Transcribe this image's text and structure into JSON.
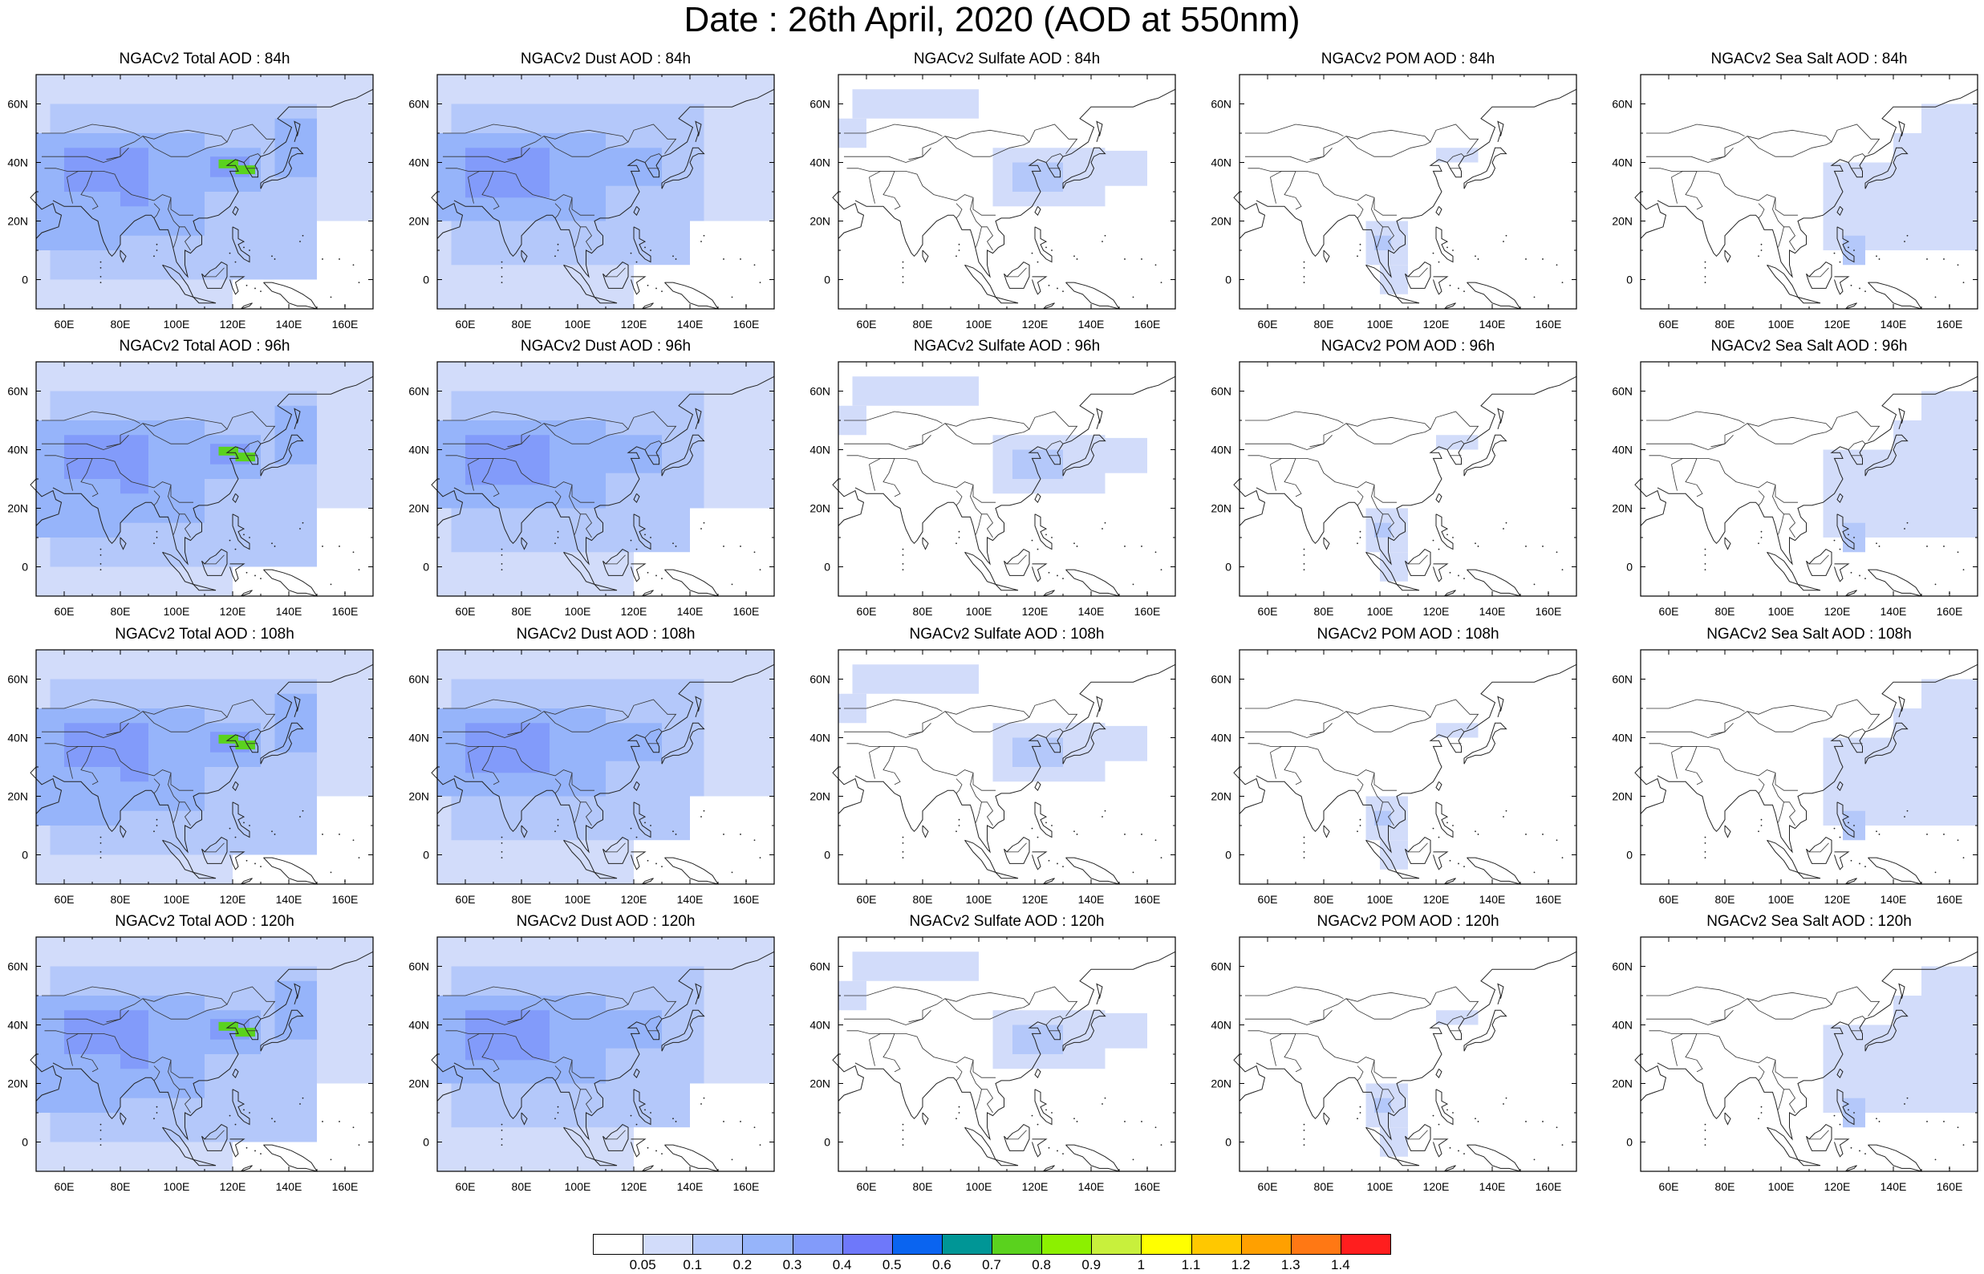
{
  "title": "Date : 26th April, 2020 (AOD at 550nm)",
  "panels": [
    {
      "title": "NGACv2 Total AOD : 84h",
      "kind": "total"
    },
    {
      "title": "NGACv2 Dust AOD : 84h",
      "kind": "dust"
    },
    {
      "title": "NGACv2 Sulfate AOD : 84h",
      "kind": "sulfate"
    },
    {
      "title": "NGACv2 POM AOD : 84h",
      "kind": "pom"
    },
    {
      "title": "NGACv2 Sea Salt AOD : 84h",
      "kind": "seasalt"
    },
    {
      "title": "NGACv2 Total AOD : 96h",
      "kind": "total"
    },
    {
      "title": "NGACv2 Dust AOD : 96h",
      "kind": "dust"
    },
    {
      "title": "NGACv2 Sulfate AOD : 96h",
      "kind": "sulfate"
    },
    {
      "title": "NGACv2 POM AOD : 96h",
      "kind": "pom"
    },
    {
      "title": "NGACv2 Sea Salt AOD : 96h",
      "kind": "seasalt"
    },
    {
      "title": "NGACv2 Total AOD : 108h",
      "kind": "total"
    },
    {
      "title": "NGACv2 Dust AOD : 108h",
      "kind": "dust"
    },
    {
      "title": "NGACv2 Sulfate AOD : 108h",
      "kind": "sulfate"
    },
    {
      "title": "NGACv2 POM AOD : 108h",
      "kind": "pom"
    },
    {
      "title": "NGACv2 Sea Salt AOD : 108h",
      "kind": "seasalt"
    },
    {
      "title": "NGACv2 Total AOD : 120h",
      "kind": "total"
    },
    {
      "title": "NGACv2 Dust AOD : 120h",
      "kind": "dust"
    },
    {
      "title": "NGACv2 Sulfate AOD : 120h",
      "kind": "sulfate"
    },
    {
      "title": "NGACv2 POM AOD : 120h",
      "kind": "pom"
    },
    {
      "title": "NGACv2 Sea Salt  AOD : 120h",
      "kind": "seasalt"
    }
  ],
  "lon_labels": [
    "60E",
    "80E",
    "100E",
    "120E",
    "140E",
    "160E"
  ],
  "lat_labels": [
    "60N",
    "40N",
    "20N",
    "0"
  ],
  "lon_values": [
    60,
    80,
    100,
    120,
    140,
    160
  ],
  "lat_values": [
    60,
    40,
    20,
    0
  ],
  "lon_range": [
    50,
    170
  ],
  "lat_range": [
    -10,
    70
  ],
  "colorbar": {
    "labels": [
      "0.05",
      "0.1",
      "0.2",
      "0.3",
      "0.4",
      "0.5",
      "0.6",
      "0.7",
      "0.8",
      "0.9",
      "1",
      "1.1",
      "1.2",
      "1.3",
      "1.4"
    ],
    "colors": [
      "#ffffff",
      "#d2dcfa",
      "#b4c8fa",
      "#96b4fa",
      "#829bfa",
      "#6e78fa",
      "#0a64f0",
      "#009696",
      "#5ad21e",
      "#8cf000",
      "#c8f03c",
      "#ffff00",
      "#ffc800",
      "#ffa000",
      "#ff7814",
      "#ff1e1e"
    ]
  }
}
